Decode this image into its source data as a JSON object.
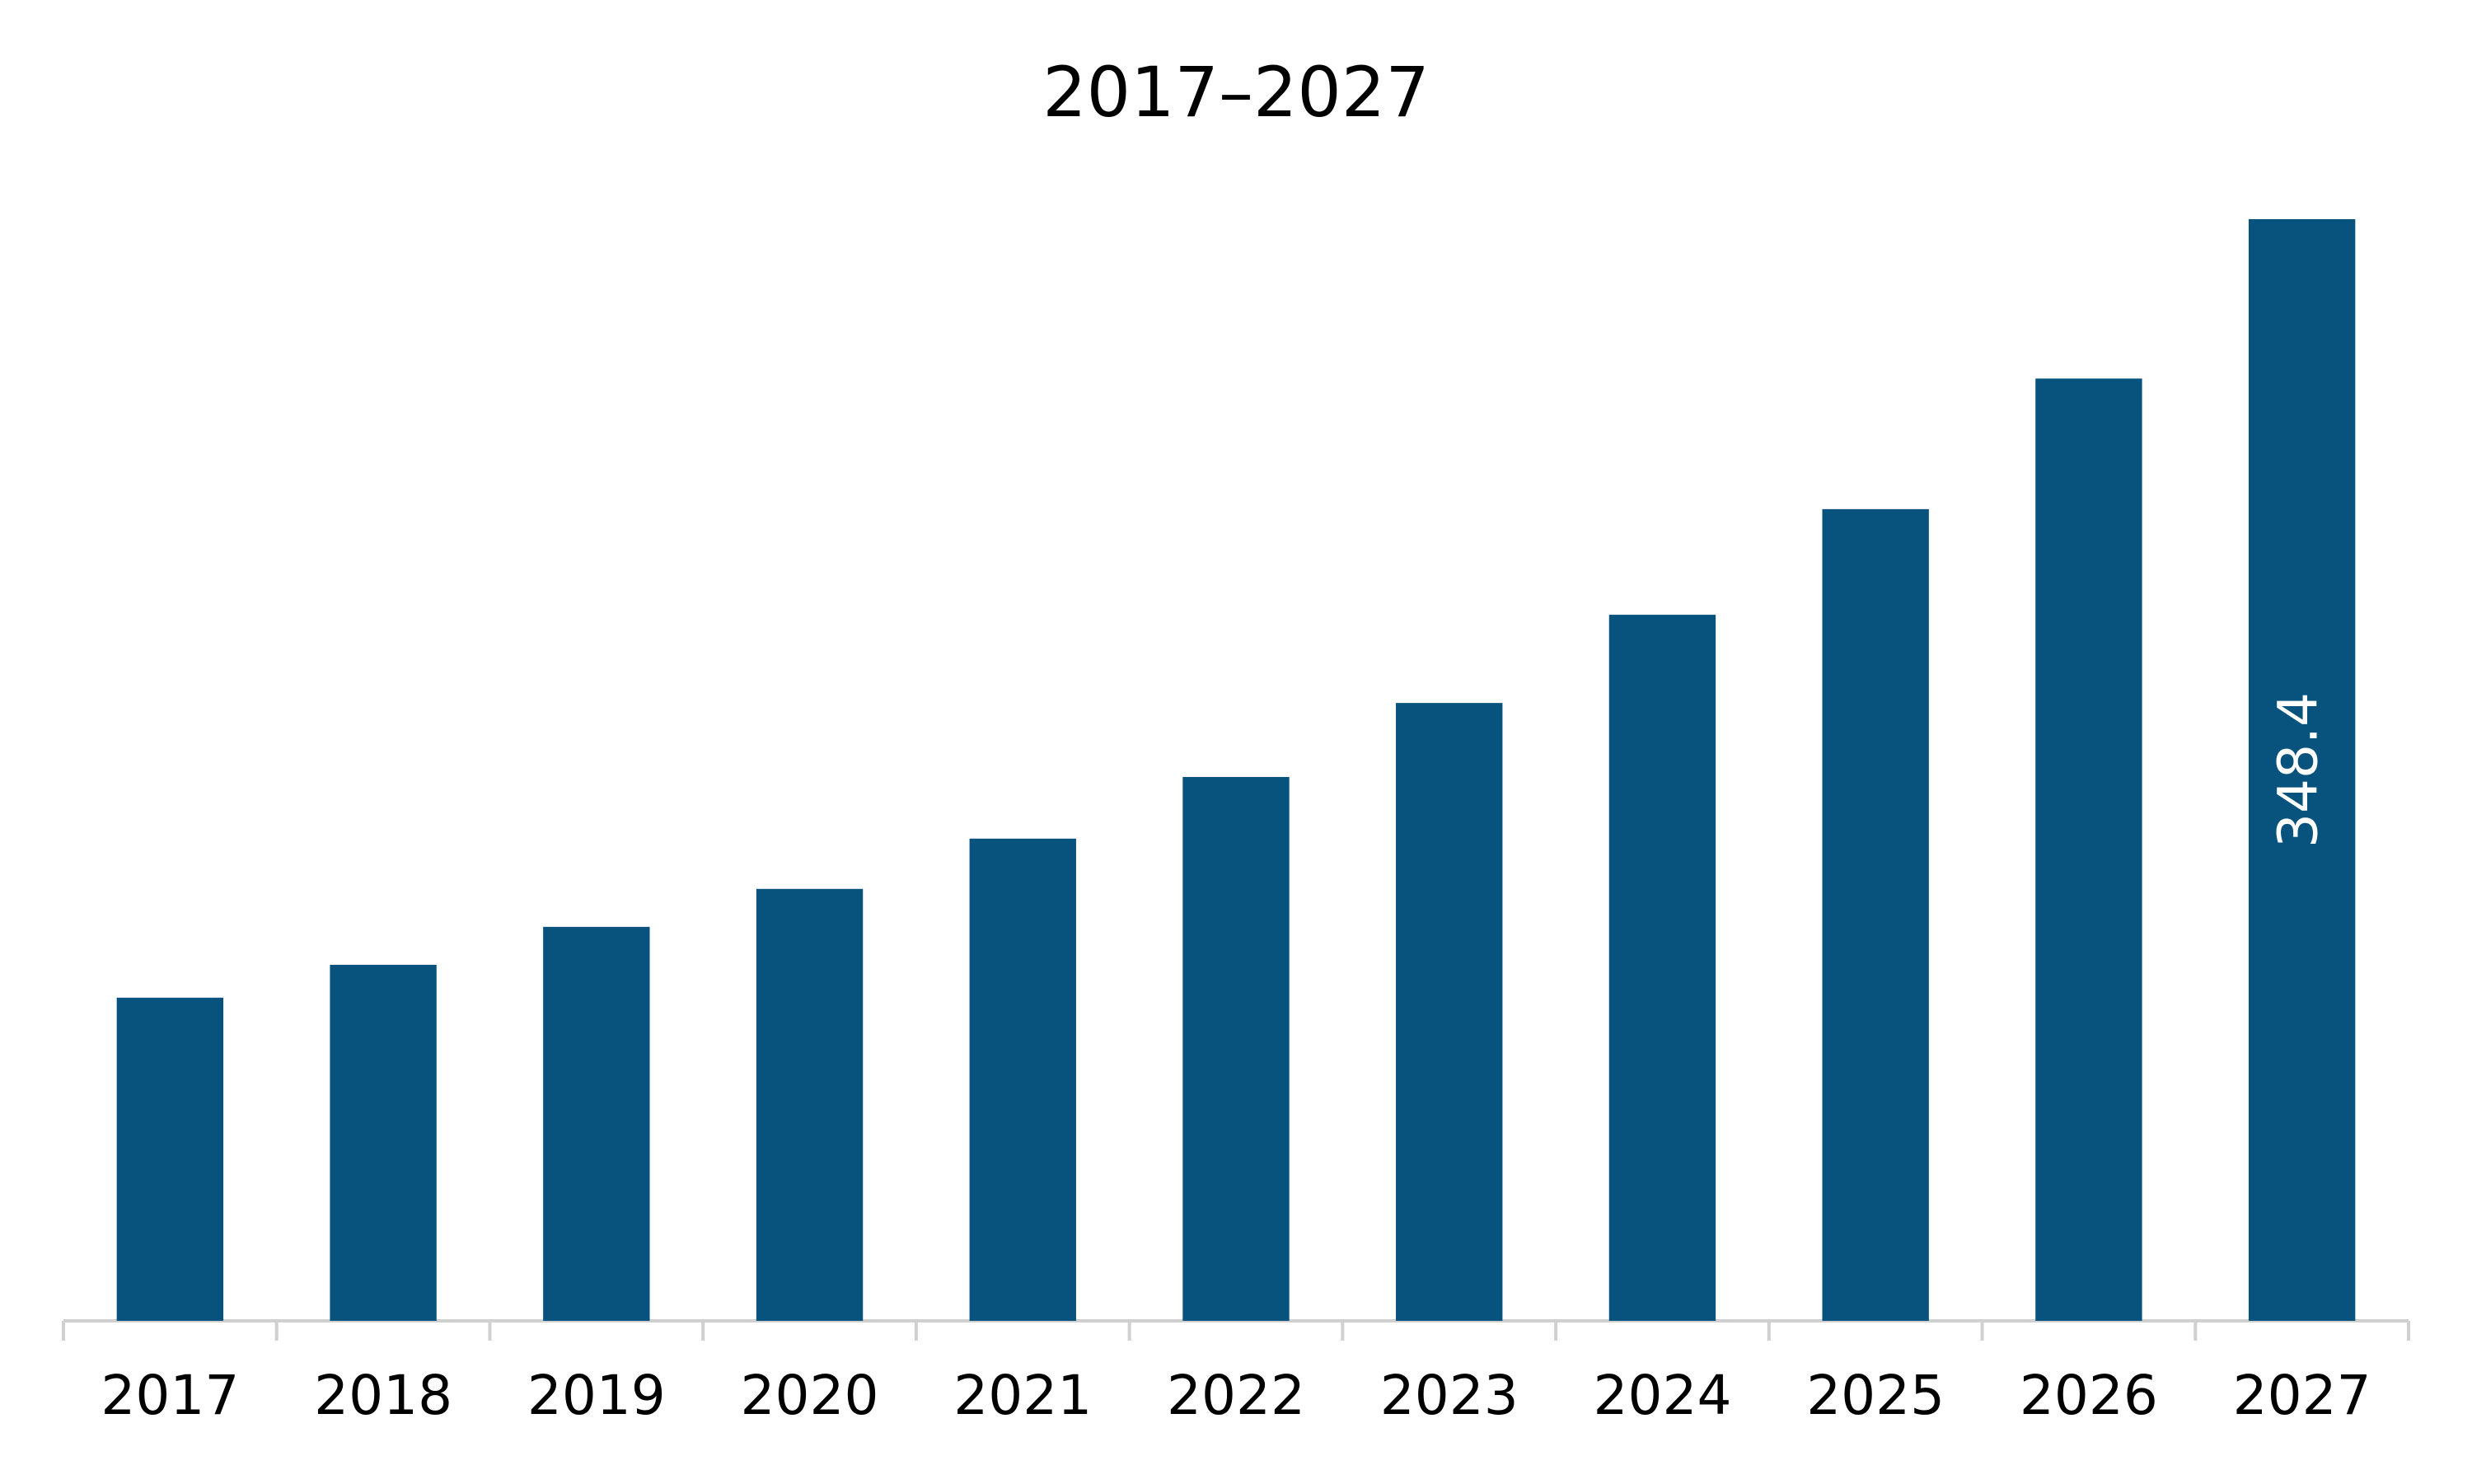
{
  "chart_data": {
    "type": "bar",
    "title": "2017–2027",
    "categories": [
      "2017",
      "2018",
      "2019",
      "2020",
      "2021",
      "2022",
      "2023",
      "2024",
      "2025",
      "2026",
      "2027"
    ],
    "values": [
      102.2,
      112.6,
      124.6,
      136.6,
      152.5,
      172.0,
      195.4,
      223.3,
      256.7,
      298.0,
      348.4
    ],
    "value_labels": [
      null,
      null,
      null,
      null,
      null,
      null,
      null,
      null,
      null,
      null,
      "348.4"
    ],
    "color": "#08537e",
    "grid": false
  }
}
